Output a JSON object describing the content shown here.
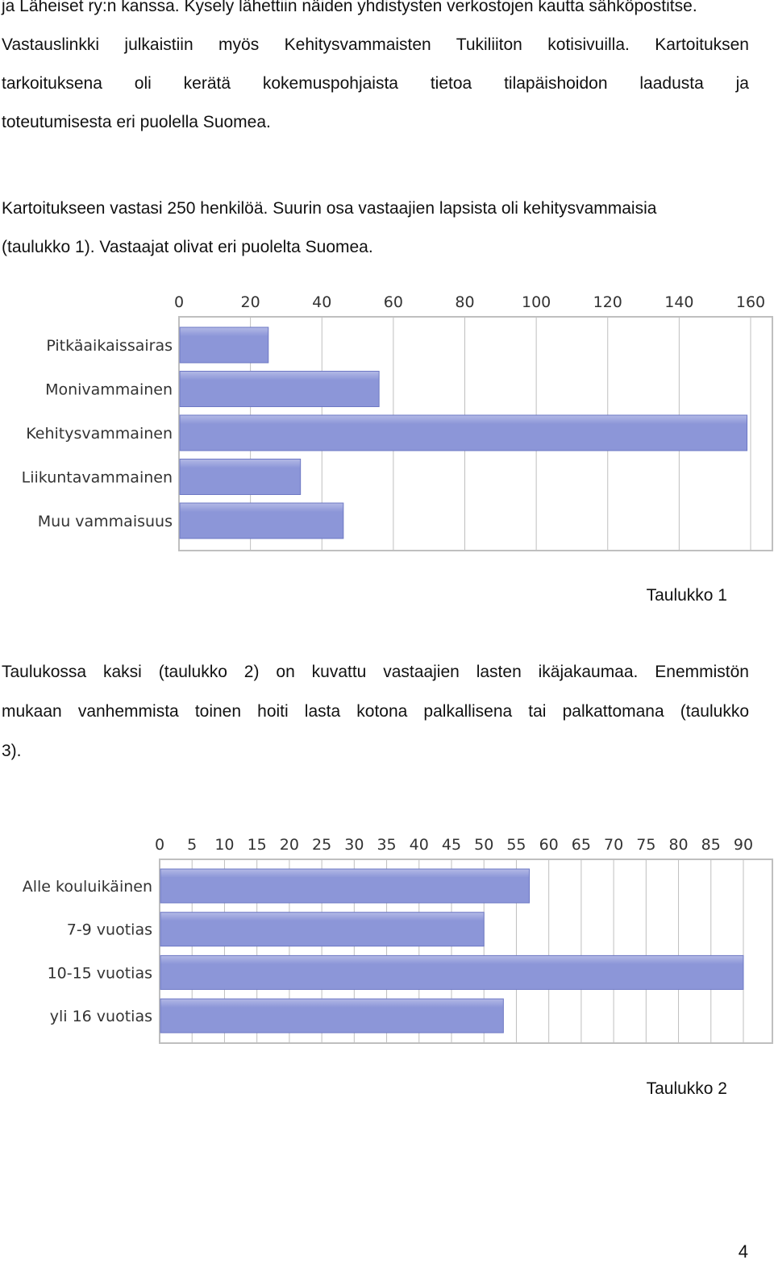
{
  "paragraph1": {
    "lines": [
      "ja Läheiset ry:n kanssa. Kysely lähettiin näiden yhdistysten verkostojen kautta sähköpostitse.",
      "Vastauslinkki julkaistiin myös Kehitysvammaisten Tukiliiton kotisivuilla. Kartoituksen",
      "tarkoituksena oli kerätä kokemuspohjaista tietoa tilapäishoidon laadusta ja",
      "toteutumisesta eri puolella Suomea."
    ]
  },
  "paragraph2": {
    "lines": [
      "Kartoitukseen vastasi 250 henkilöä. Suurin osa vastaajien lapsista oli kehitysvammaisia",
      "(taulukko 1). Vastaajat olivat eri puolelta Suomea."
    ]
  },
  "caption1": "Taulukko 1",
  "paragraph3": {
    "lines": [
      "Taulukossa kaksi (taulukko 2) on kuvattu vastaajien lasten ikäjakaumaa. Enemmistön",
      "mukaan vanhemmista toinen hoiti lasta kotona palkallisena tai palkattomana (taulukko",
      "3)."
    ]
  },
  "caption2": "Taulukko 2",
  "page_number": "4",
  "colors": {
    "bar_fill": "#8c96d8",
    "bar_top": "#b3b9e6",
    "bar_edge": "#6d78c4",
    "grid": "#bfbfbf",
    "axis_text": "#333333"
  },
  "chart_data": [
    {
      "type": "bar",
      "orientation": "horizontal",
      "categories": [
        "Pitkäaikaissairas",
        "Monivammainen",
        "Kehitysvammainen",
        "Liikuntavammainen",
        "Muu vammaisuus"
      ],
      "values": [
        25,
        56,
        159,
        34,
        46
      ],
      "xlim": [
        0,
        160
      ],
      "ticks": [
        "0",
        "20",
        "40",
        "60",
        "80",
        "100",
        "120",
        "140",
        "160"
      ],
      "tick_values": [
        0,
        20,
        40,
        60,
        80,
        100,
        120,
        140,
        160
      ],
      "axis_position": "top",
      "grid": true
    },
    {
      "type": "bar",
      "orientation": "horizontal",
      "categories": [
        "Alle kouluikäinen",
        "7-9 vuotias",
        "10-15 vuotias",
        "yli 16 vuotias"
      ],
      "values": [
        57,
        50,
        90,
        53
      ],
      "xlim": [
        0,
        90
      ],
      "ticks": [
        "0",
        "5",
        "10",
        "15",
        "20",
        "25",
        "30",
        "35",
        "40",
        "45",
        "50",
        "55",
        "60",
        "65",
        "70",
        "75",
        "80",
        "85",
        "90"
      ],
      "tick_values": [
        0,
        5,
        10,
        15,
        20,
        25,
        30,
        35,
        40,
        45,
        50,
        55,
        60,
        65,
        70,
        75,
        80,
        85,
        90
      ],
      "axis_position": "top",
      "grid": true
    }
  ]
}
